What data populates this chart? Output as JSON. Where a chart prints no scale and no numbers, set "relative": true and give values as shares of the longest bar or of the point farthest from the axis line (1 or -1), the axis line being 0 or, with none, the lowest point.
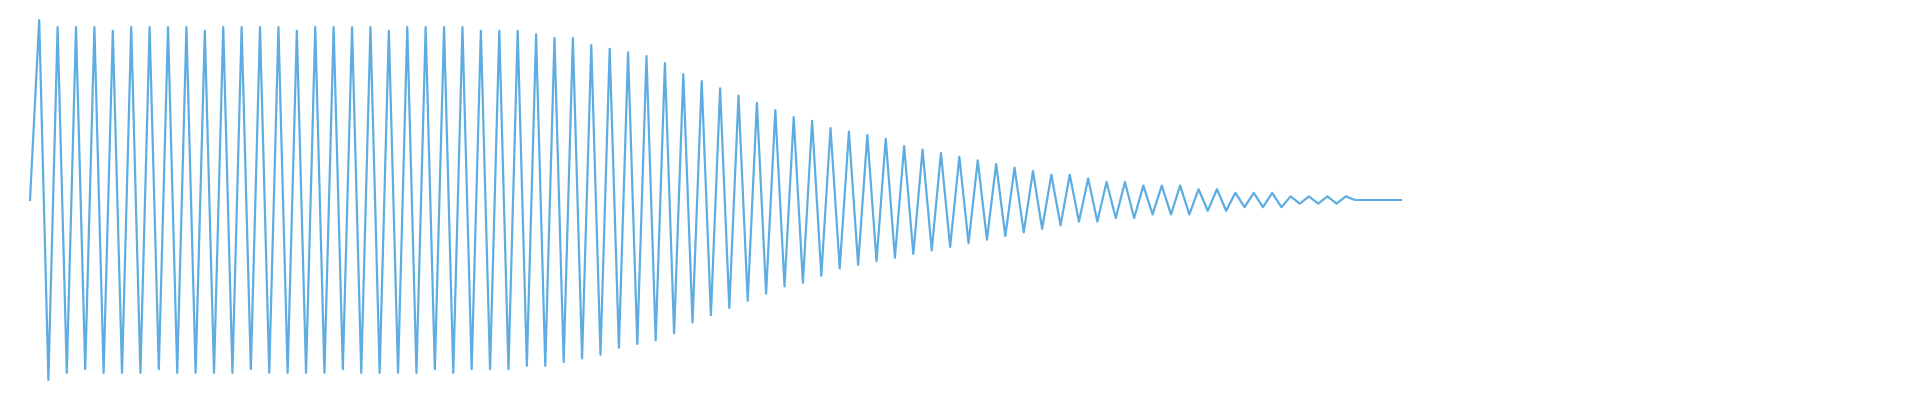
{
  "chart_data": {
    "type": "line",
    "relative": true,
    "categories": [
      null,
      null,
      null,
      null,
      null,
      null,
      null,
      null,
      null,
      null,
      null,
      null,
      null,
      null,
      null,
      null,
      null,
      null,
      null,
      null,
      null,
      null,
      null,
      null,
      null,
      null,
      null,
      null,
      null,
      null,
      null,
      null,
      null,
      null,
      null,
      null,
      null,
      null,
      null,
      null,
      null,
      null,
      null,
      null,
      null,
      null,
      null,
      null,
      null,
      null,
      null,
      null,
      null,
      null,
      null,
      null,
      null,
      null,
      null,
      null,
      null,
      null,
      null,
      null,
      null,
      null,
      null,
      null,
      null,
      null,
      null,
      null,
      null,
      null,
      null,
      null,
      null,
      null,
      null,
      null,
      null,
      null,
      null,
      null,
      null,
      null,
      null,
      null,
      null,
      null,
      null,
      null,
      null,
      null,
      null,
      null,
      null,
      null,
      null,
      null,
      null,
      null,
      null,
      null,
      null,
      null,
      null,
      null,
      null,
      null,
      null,
      null,
      null,
      null,
      null,
      null,
      null,
      null,
      null,
      null,
      null,
      null,
      null,
      null,
      null,
      null,
      null,
      null,
      null,
      null,
      null,
      null,
      null,
      null,
      null,
      null,
      null,
      null,
      null,
      null,
      null,
      null,
      null,
      null,
      null,
      null,
      null,
      null,
      null,
      null
    ],
    "series": [
      {
        "color": "#5dade2",
        "values": [
          0.5,
          1.0,
          0.0,
          0.98,
          0.02,
          0.98,
          0.03,
          0.98,
          0.02,
          0.97,
          0.02,
          0.98,
          0.02,
          0.98,
          0.03,
          0.98,
          0.02,
          0.98,
          0.02,
          0.97,
          0.02,
          0.98,
          0.02,
          0.98,
          0.03,
          0.98,
          0.02,
          0.98,
          0.02,
          0.97,
          0.02,
          0.98,
          0.02,
          0.98,
          0.03,
          0.98,
          0.02,
          0.98,
          0.02,
          0.97,
          0.02,
          0.98,
          0.02,
          0.98,
          0.03,
          0.98,
          0.02,
          0.98,
          0.03,
          0.97,
          0.03,
          0.97,
          0.03,
          0.97,
          0.04,
          0.96,
          0.04,
          0.95,
          0.05,
          0.95,
          0.06,
          0.93,
          0.07,
          0.92,
          0.09,
          0.91,
          0.1,
          0.9,
          0.11,
          0.88,
          0.13,
          0.85,
          0.16,
          0.83,
          0.18,
          0.81,
          0.2,
          0.79,
          0.22,
          0.77,
          0.24,
          0.75,
          0.26,
          0.73,
          0.27,
          0.72,
          0.29,
          0.7,
          0.31,
          0.69,
          0.32,
          0.68,
          0.33,
          0.67,
          0.34,
          0.65,
          0.35,
          0.64,
          0.36,
          0.63,
          0.37,
          0.62,
          0.38,
          0.61,
          0.39,
          0.6,
          0.4,
          0.59,
          0.41,
          0.58,
          0.42,
          0.57,
          0.43,
          0.57,
          0.44,
          0.56,
          0.44,
          0.55,
          0.45,
          0.55,
          0.45,
          0.54,
          0.46,
          0.54,
          0.46,
          0.54,
          0.46,
          0.53,
          0.47,
          0.53,
          0.47,
          0.52,
          0.48,
          0.52,
          0.48,
          0.52,
          0.48,
          0.51,
          0.49,
          0.51,
          0.49,
          0.51,
          0.49,
          0.51,
          0.5,
          0.5,
          0.5,
          0.5,
          0.5,
          0.5
        ]
      }
    ]
  }
}
